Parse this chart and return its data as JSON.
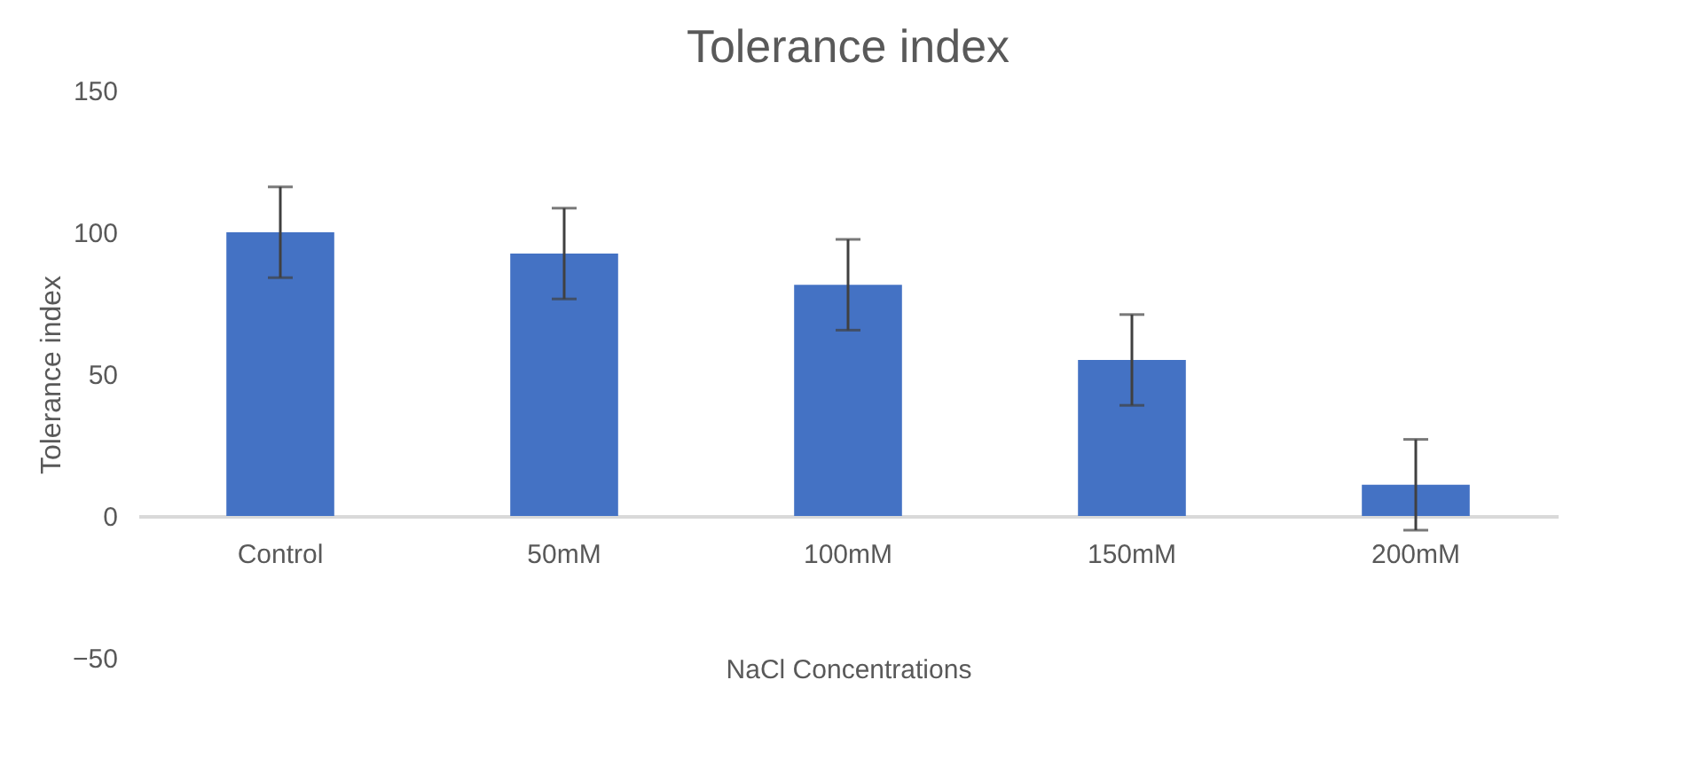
{
  "chart_data": {
    "type": "bar",
    "title": "Tolerance index",
    "xlabel": "NaCl Concentrations",
    "ylabel": "Tolerance index",
    "categories": [
      "Control",
      "50mM",
      "100mM",
      "150mM",
      "200mM"
    ],
    "values": [
      100,
      92.5,
      81.5,
      55,
      11
    ],
    "errors": [
      16,
      16,
      16,
      16,
      16
    ],
    "color": "#4472c4",
    "ylim": [
      -50,
      150
    ],
    "yticks": [
      -50,
      0,
      50,
      100,
      150
    ],
    "grid": false
  }
}
